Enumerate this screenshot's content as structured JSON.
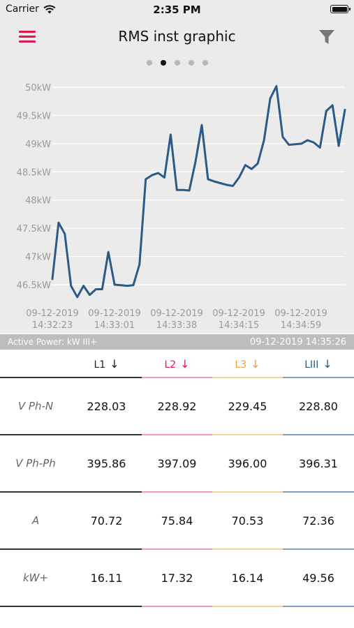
{
  "status_bar": {
    "carrier": "Carrier",
    "time": "2:35 PM"
  },
  "nav": {
    "title": "RMS inst graphic",
    "menu_icon": "hamburger-menu-icon",
    "filter_icon": "filter-icon"
  },
  "pager": {
    "count": 5,
    "active_index": 1
  },
  "colors": {
    "accent": "#e0194d",
    "line": "#2c5a87",
    "L2": "#e0194d",
    "L3": "#f0a030",
    "LIII": "#2c5a87"
  },
  "chart_data": {
    "type": "line",
    "y_ticks": [
      "50kW",
      "49.5kW",
      "49kW",
      "48.5kW",
      "48kW",
      "47.5kW",
      "47kW",
      "46.5kW"
    ],
    "y_tick_values": [
      50,
      49.5,
      49,
      48.5,
      48,
      47.5,
      47,
      46.5
    ],
    "ylim": [
      46.3,
      50.2
    ],
    "x_ticks": [
      {
        "date": "09-12-2019",
        "time": "14:32:23"
      },
      {
        "date": "09-12-2019",
        "time": "14:33:01"
      },
      {
        "date": "09-12-2019",
        "time": "14:33:38"
      },
      {
        "date": "09-12-2019",
        "time": "14:34:15"
      },
      {
        "date": "09-12-2019",
        "time": "14:34:59"
      }
    ],
    "grid": true,
    "values": [
      46.6,
      47.6,
      47.4,
      46.48,
      46.28,
      46.48,
      46.32,
      46.42,
      46.42,
      47.08,
      46.5,
      46.49,
      46.48,
      46.49,
      46.86,
      48.37,
      48.44,
      48.48,
      48.4,
      49.16,
      48.18,
      48.18,
      48.17,
      48.68,
      49.33,
      48.37,
      48.33,
      48.3,
      48.27,
      48.25,
      48.4,
      48.62,
      48.55,
      48.65,
      49.06,
      49.8,
      50.02,
      49.12,
      48.98,
      48.99,
      49.0,
      49.06,
      49.02,
      48.93,
      49.58,
      49.68,
      48.96,
      49.6
    ]
  },
  "info_bar": {
    "left": "Active Power: kW III+",
    "right": "09-12-2019 14:35:26"
  },
  "table": {
    "columns": [
      "L1",
      "L2",
      "L3",
      "LIII"
    ],
    "arrow": "↓",
    "rows": [
      {
        "label": "V Ph-N",
        "values": [
          "228.03",
          "228.92",
          "229.45",
          "228.80"
        ]
      },
      {
        "label": "V Ph-Ph",
        "values": [
          "395.86",
          "397.09",
          "396.00",
          "396.31"
        ]
      },
      {
        "label": "A",
        "values": [
          "70.72",
          "75.84",
          "70.53",
          "72.36"
        ]
      },
      {
        "label": "kW+",
        "values": [
          "16.11",
          "17.32",
          "16.14",
          "49.56"
        ]
      }
    ]
  }
}
